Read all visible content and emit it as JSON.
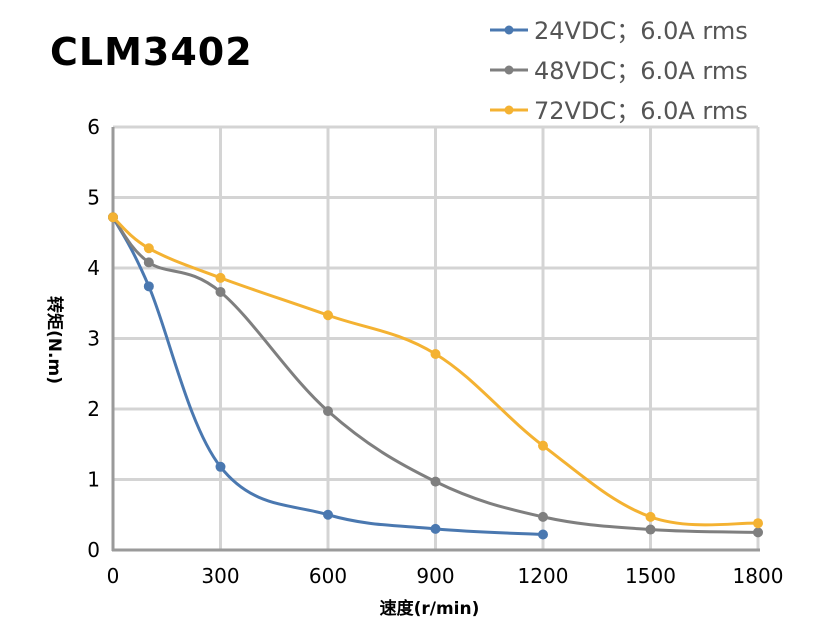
{
  "chart_data": {
    "type": "line",
    "title": "CLM3402",
    "xlabel": "速度(r/min)",
    "ylabel": "转矩(N.m)",
    "xlim": [
      0,
      1800
    ],
    "ylim": [
      0,
      6
    ],
    "xticks": [
      0,
      300,
      600,
      900,
      1200,
      1500,
      1800
    ],
    "yticks": [
      0,
      1,
      2,
      3,
      4,
      5,
      6
    ],
    "grid": true,
    "legend_position": "top-right",
    "series": [
      {
        "name": "24VDC；6.0A rms",
        "color": "#4a78b0",
        "x": [
          0,
          100,
          300,
          600,
          900,
          1200
        ],
        "y": [
          4.72,
          3.74,
          1.18,
          0.5,
          0.3,
          0.22
        ]
      },
      {
        "name": "48VDC；6.0A rms",
        "color": "#7f7f7f",
        "x": [
          0,
          100,
          300,
          600,
          900,
          1200,
          1500,
          1800
        ],
        "y": [
          4.72,
          4.08,
          3.66,
          1.97,
          0.97,
          0.47,
          0.29,
          0.25
        ]
      },
      {
        "name": "72VDC；6.0A rms",
        "color": "#f4b232",
        "x": [
          0,
          100,
          300,
          600,
          900,
          1200,
          1500,
          1800
        ],
        "y": [
          4.72,
          4.28,
          3.86,
          3.33,
          2.78,
          1.48,
          0.47,
          0.38
        ]
      }
    ]
  }
}
